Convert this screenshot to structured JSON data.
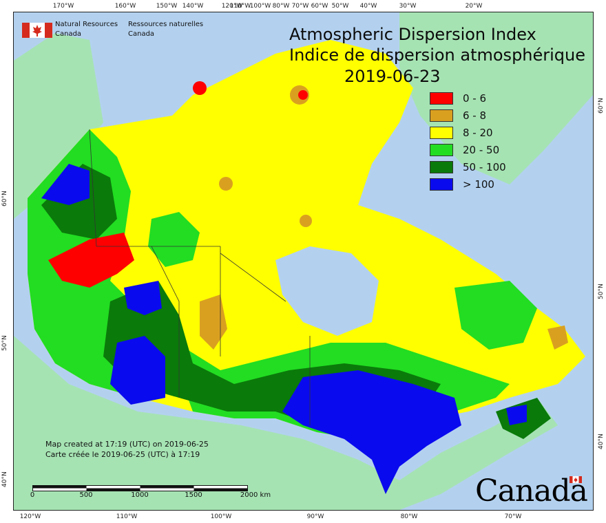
{
  "header": {
    "agency_en_line1": "Natural Resources",
    "agency_en_line2": "Canada",
    "agency_fr_line1": "Ressources naturelles",
    "agency_fr_line2": "Canada"
  },
  "title": {
    "en": "Atmospheric Dispersion Index",
    "fr": "Indice de dispersion atmosphérique",
    "date": "2019-06-23"
  },
  "legend": [
    {
      "label": "0 - 6",
      "color": "#ff0000"
    },
    {
      "label": "6 - 8",
      "color": "#d9a020"
    },
    {
      "label": "8 - 20",
      "color": "#ffff00"
    },
    {
      "label": "20 - 50",
      "color": "#22dd22"
    },
    {
      "label": "50 - 100",
      "color": "#0a7a0a"
    },
    {
      "label": "> 100",
      "color": "#0a0aee"
    }
  ],
  "graticule": {
    "top_ticks": [
      "170°W",
      "160°W",
      "150°W",
      "140°W",
      "120°W",
      "110°W",
      "100°W",
      "80°W",
      "70°W",
      "60°W",
      "50°W",
      "40°W",
      "30°W",
      "20°W"
    ],
    "bottom_ticks": [
      "120°W",
      "110°W",
      "100°W",
      "90°W",
      "80°W",
      "70°W"
    ],
    "left_ticks": [
      "60°N",
      "50°N",
      "40°N"
    ],
    "right_ticks": [
      "60°N",
      "50°N",
      "40°N"
    ]
  },
  "credits": {
    "en": "Map created at 17:19 (UTC) on 2019-06-25",
    "fr": "Carte créée le 2019-06-25 (UTC) à 17:19"
  },
  "scale": {
    "labels": [
      "0",
      "500",
      "1000",
      "1500",
      "2000  km"
    ]
  },
  "wordmark": "Canada",
  "colors": {
    "ocean": "#b3d1ef",
    "foreign_land": "#a6e3b3",
    "flag_red": "#d52b1e"
  }
}
